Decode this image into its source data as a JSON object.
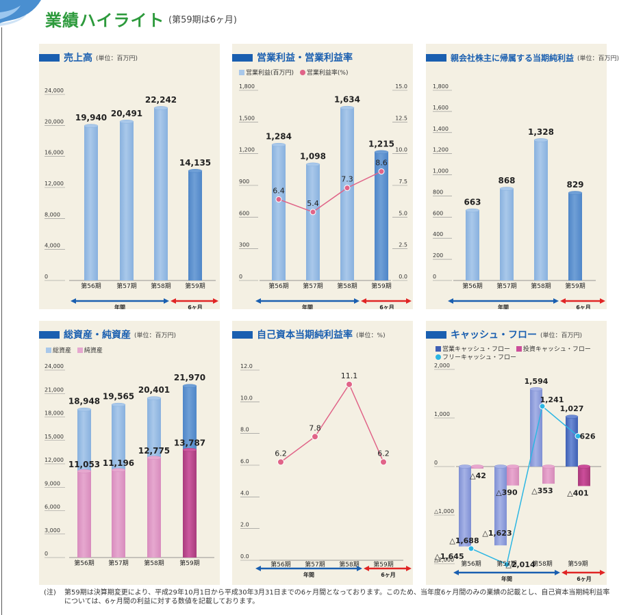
{
  "header": {
    "title": "業績ハイライト",
    "subtitle": "(第59期は6ヶ月)"
  },
  "footnote": {
    "label": "(注)",
    "text": "第59期は決算期変更により、平成29年10月1日から平成30年3月31日までの6ヶ月間となっております。このため、当年度6ヶ月間のみの業績の記載とし、自己資本当期純利益率については、6ヶ月間の利益に対する数値を記載しております。"
  },
  "colors": {
    "panel_bg": "#f4f0e3",
    "title_blue": "#1a5fb0",
    "bar_light": "#a9c8ea",
    "bar_dark": "#6f9fd6",
    "pink_light": "#e6a8cf",
    "pink_dark": "#cc5a9f",
    "line_pink": "#e06488",
    "arrow_blue": "#1a5fb0",
    "arrow_red": "#e02525",
    "cf_op": "#3e5fb4",
    "cf_inv": "#cc4d9a",
    "cf_free": "#2bb6e3"
  },
  "annual_label": "年間",
  "half_label": "6ヶ月",
  "chart_data": [
    {
      "id": "sales",
      "type": "bar",
      "title": "売上高",
      "unit": "(単位：百万円)",
      "categories": [
        "第56期",
        "第57期",
        "第58期",
        "第59期"
      ],
      "values": [
        19940,
        20491,
        22242,
        14135
      ],
      "value_labels": [
        "19,940",
        "20,491",
        "22,242",
        "14,135"
      ],
      "ylim": [
        0,
        24000
      ],
      "yticks": [
        "0",
        "4,000",
        "8,000",
        "12,000",
        "16,000",
        "20,000",
        "24,000"
      ]
    },
    {
      "id": "op",
      "type": "bar+line",
      "title": "営業利益・営業利益率",
      "unit": "",
      "legend": [
        "営業利益(百万円)",
        "営業利益率(%)"
      ],
      "categories": [
        "第56期",
        "第57期",
        "第58期",
        "第59期"
      ],
      "values": [
        1284,
        1098,
        1634,
        1215
      ],
      "value_labels": [
        "1,284",
        "1,098",
        "1,634",
        "1,215"
      ],
      "rate": [
        6.4,
        5.4,
        7.3,
        8.6
      ],
      "rate_labels": [
        "6.4",
        "5.4",
        "7.3",
        "8.6"
      ],
      "ylim": [
        0,
        1800
      ],
      "y2lim": [
        0,
        15
      ],
      "yticks": [
        "0",
        "300",
        "600",
        "900",
        "1,200",
        "1,500",
        "1,800"
      ],
      "y2ticks": [
        "0.0",
        "2.5",
        "5.0",
        "7.5",
        "10.0",
        "12.5",
        "15.0"
      ]
    },
    {
      "id": "netincome",
      "type": "bar",
      "title": "親会社株主に帰属する当期純利益",
      "unit": "(単位：百万円)",
      "categories": [
        "第56期",
        "第57期",
        "第58期",
        "第59期"
      ],
      "values": [
        663,
        868,
        1328,
        829
      ],
      "value_labels": [
        "663",
        "868",
        "1,328",
        "829"
      ],
      "ylim": [
        0,
        1800
      ],
      "yticks": [
        "0",
        "200",
        "400",
        "600",
        "800",
        "1,000",
        "1,200",
        "1,400",
        "1,600",
        "1,800"
      ]
    },
    {
      "id": "assets",
      "type": "bar",
      "title": "総資産・純資産",
      "unit": "(単位：百万円)",
      "legend": [
        "総資産",
        "純資産"
      ],
      "categories": [
        "第56期",
        "第57期",
        "第58期",
        "第59期"
      ],
      "total": [
        18948,
        19565,
        20401,
        21970
      ],
      "total_labels": [
        "18,948",
        "19,565",
        "20,401",
        "21,970"
      ],
      "net": [
        11053,
        11196,
        12775,
        13787
      ],
      "net_labels": [
        "11,053",
        "11,196",
        "12,775",
        "13,787"
      ],
      "ylim": [
        0,
        24000
      ],
      "yticks": [
        "0",
        "3,000",
        "6,000",
        "9,000",
        "12,000",
        "15,000",
        "18,000",
        "21,000",
        "24,000"
      ]
    },
    {
      "id": "roe",
      "type": "line",
      "title": "自己資本当期純利益率",
      "unit": "(単位：%)",
      "categories": [
        "第56期",
        "第57期",
        "第58期",
        "第59期"
      ],
      "values": [
        6.2,
        7.8,
        11.1,
        6.2
      ],
      "value_labels": [
        "6.2",
        "7.8",
        "11.1",
        "6.2"
      ],
      "ylim": [
        0,
        12
      ],
      "yticks": [
        "0.0",
        "2.0",
        "4.0",
        "6.0",
        "8.0",
        "10.0",
        "12.0"
      ]
    },
    {
      "id": "cf",
      "type": "bar+line",
      "title": "キャッシュ・フロー",
      "unit": "(単位：百万円)",
      "legend": [
        "営業キャッシュ・フロー",
        "投資キャッシュ・フロー",
        "フリーキャッシュ・フロー"
      ],
      "categories": [
        "第56期",
        "第57期",
        "第58期",
        "第59期"
      ],
      "operating": [
        -1645,
        -1623,
        1594,
        1027
      ],
      "operating_labels": [
        "△1,645",
        "△1,623",
        "1,594",
        "1,027"
      ],
      "investing": [
        -42,
        -390,
        -353,
        -401
      ],
      "investing_labels": [
        "△42",
        "△390",
        "△353",
        "△401"
      ],
      "free": [
        -1688,
        -2014,
        1241,
        626
      ],
      "free_labels": [
        "△1,688",
        "△2,014",
        "1,241",
        "626"
      ],
      "ylim": [
        -2000,
        2000
      ],
      "yticks": [
        "△2,000",
        "△1,000",
        "0",
        "1,000",
        "2,000"
      ]
    }
  ]
}
